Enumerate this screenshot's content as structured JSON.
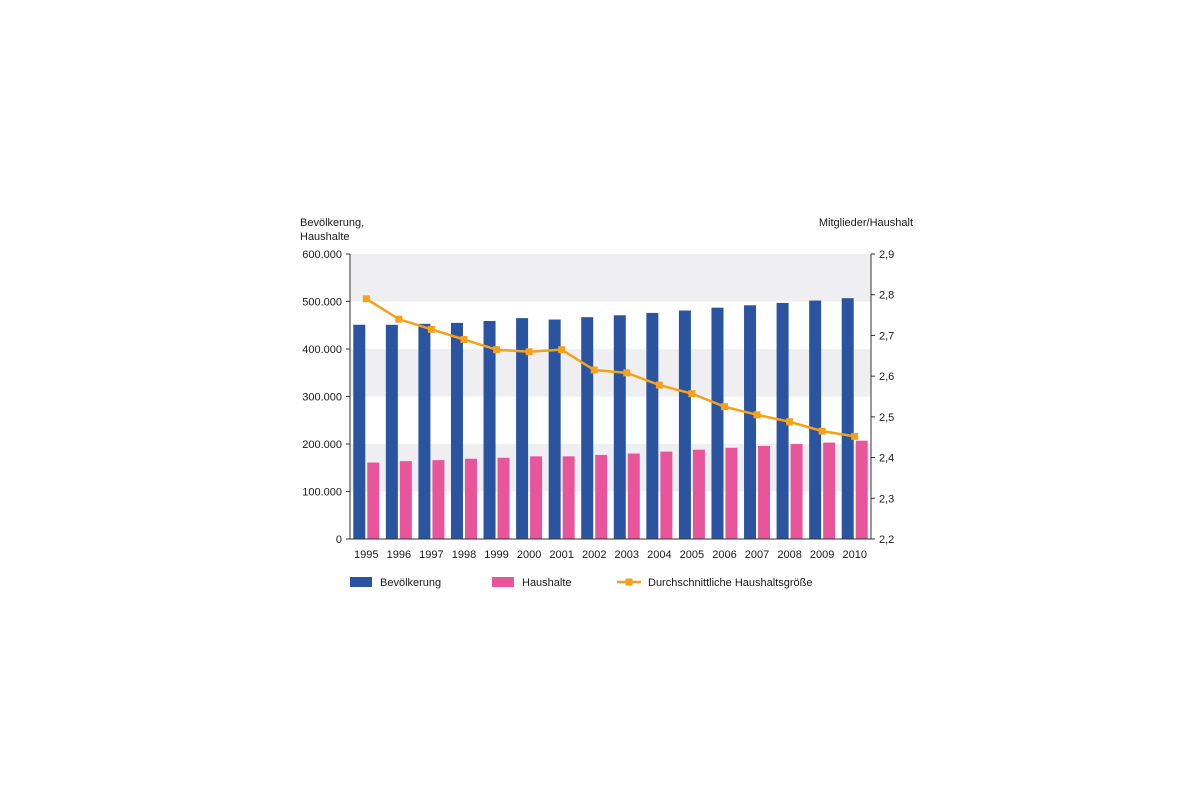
{
  "chart_data": {
    "type": "bar",
    "categories": [
      "1995",
      "1996",
      "1997",
      "1998",
      "1999",
      "2000",
      "2001",
      "2002",
      "2003",
      "2004",
      "2005",
      "2006",
      "2007",
      "2008",
      "2009",
      "2010"
    ],
    "series": [
      {
        "name": "Bevölkerung",
        "kind": "bar",
        "axis": "left",
        "color": "#2a54a0",
        "values": [
          451000,
          451000,
          453000,
          455000,
          459000,
          465000,
          462000,
          467000,
          471000,
          476000,
          481000,
          487000,
          492000,
          497000,
          502000,
          507000
        ]
      },
      {
        "name": "Haushalte",
        "kind": "bar",
        "axis": "left",
        "color": "#e8559b",
        "values": [
          161000,
          164000,
          166000,
          169000,
          171000,
          174000,
          174000,
          177000,
          180000,
          184000,
          188000,
          192000,
          196000,
          200000,
          203000,
          207000
        ]
      },
      {
        "name": "Durchschnittliche Haushaltsgröße",
        "kind": "line",
        "axis": "right",
        "color": "#f5a11b",
        "values": [
          2.79,
          2.74,
          2.715,
          2.69,
          2.665,
          2.66,
          2.665,
          2.615,
          2.608,
          2.578,
          2.557,
          2.525,
          2.505,
          2.488,
          2.465,
          2.452
        ]
      }
    ],
    "ylabel_left": [
      "Bevölkerung,",
      "Haushalte"
    ],
    "ylabel_right": "Mitglieder/Haushalt",
    "y_left": {
      "min": 0,
      "max": 600000,
      "ticks": [
        "0",
        "100.000",
        "200.000",
        "300.000",
        "400.000",
        "500.000",
        "600.000"
      ]
    },
    "y_right": {
      "min": 2.2,
      "max": 2.9,
      "ticks": [
        "2,2",
        "2,3",
        "2,4",
        "2,5",
        "2,6",
        "2,7",
        "2,8",
        "2,9"
      ]
    },
    "grid": "alternating horizontal bands",
    "band_color": "#efeff2",
    "legend_position": "bottom"
  }
}
